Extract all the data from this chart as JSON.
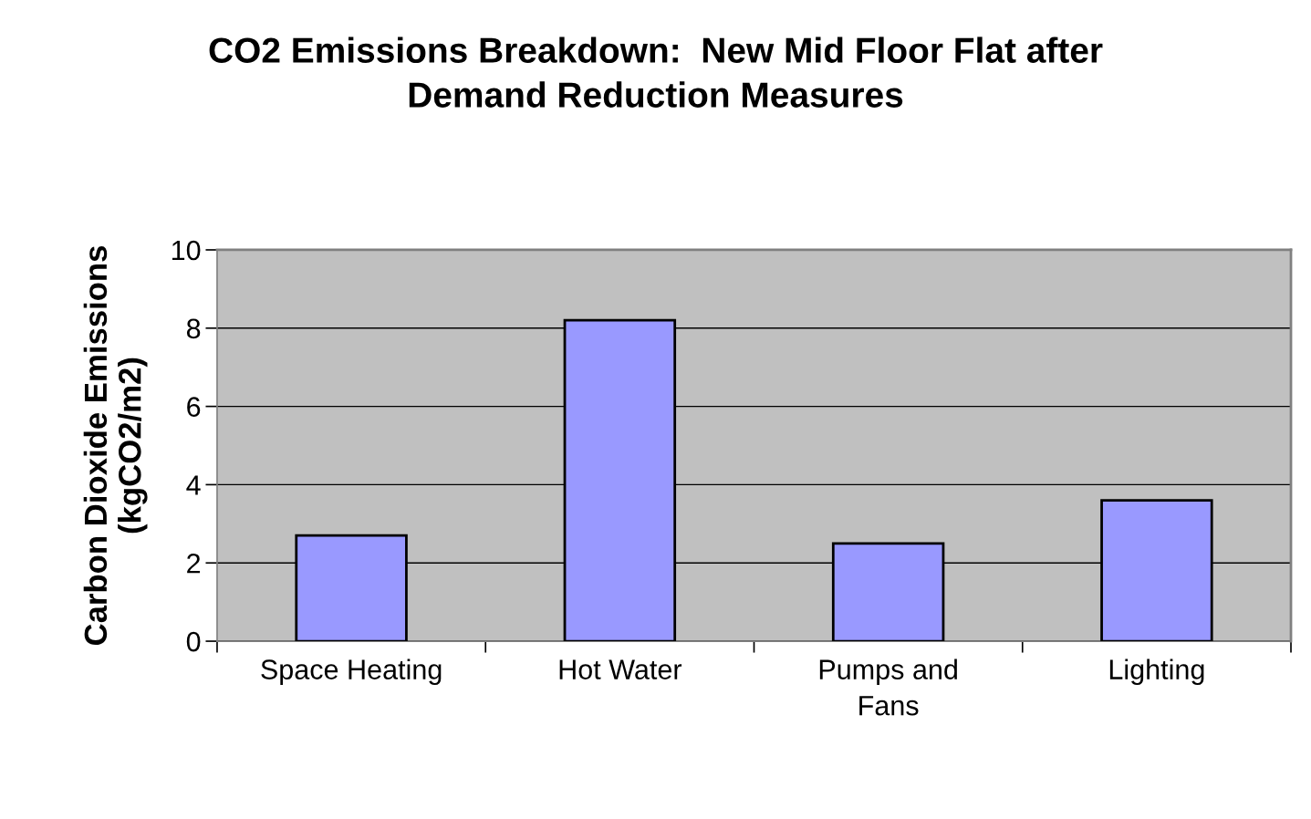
{
  "chart_data": {
    "type": "bar",
    "title": "CO2 Emissions Breakdown:  New Mid Floor Flat after\nDemand Reduction Measures",
    "ylabel": "Carbon Dioxide Emissions\n(kgCO2/m2)",
    "categories": [
      "Space Heating",
      "Hot Water",
      "Pumps and\nFans",
      "Lighting"
    ],
    "values": [
      2.7,
      8.2,
      2.5,
      3.6
    ],
    "color": "#9999ff",
    "ylim": [
      0,
      10
    ],
    "yticks": [
      0,
      2,
      4,
      6,
      8,
      10
    ],
    "grid": "y"
  }
}
